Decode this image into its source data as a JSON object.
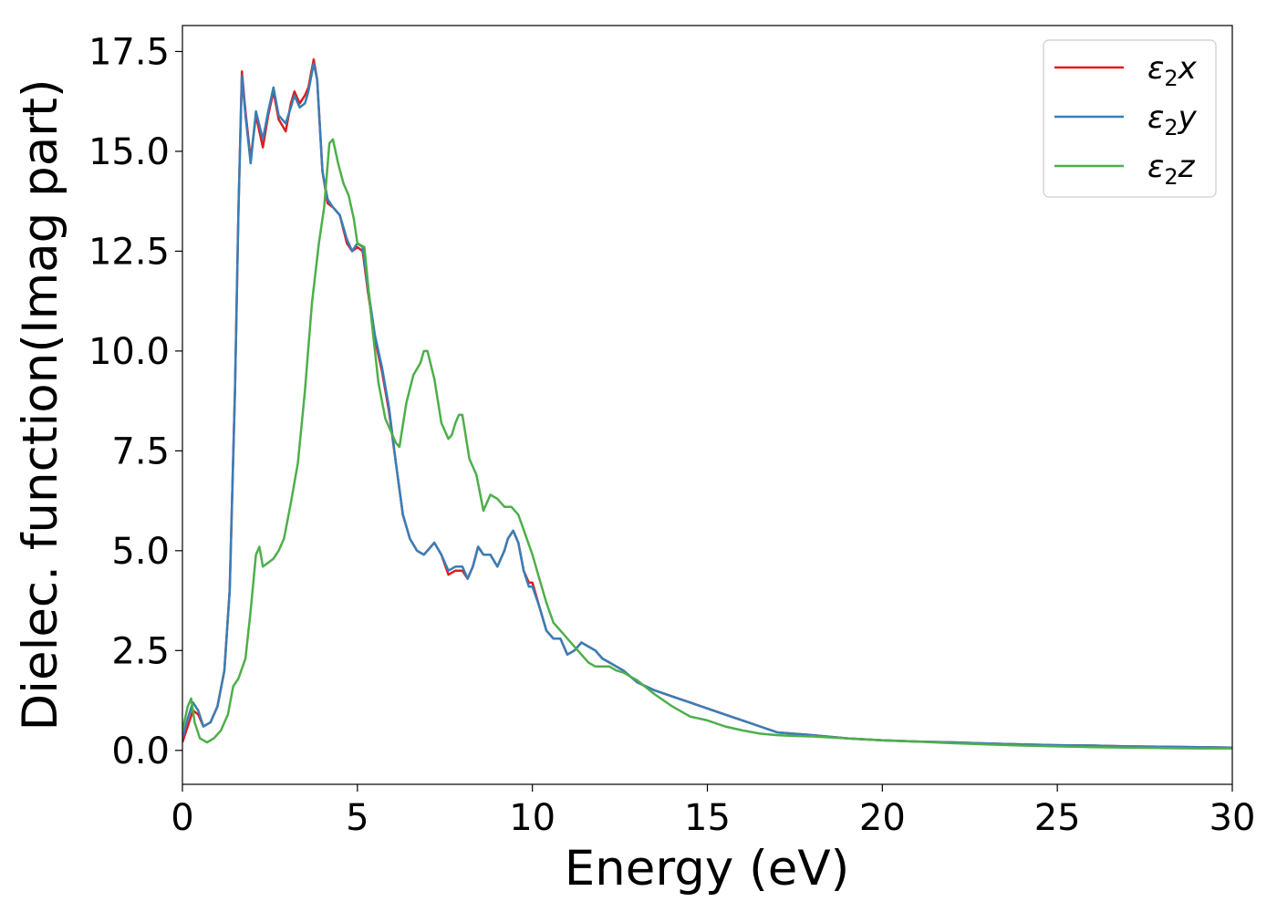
{
  "chart_data": {
    "type": "line",
    "xlabel": "Energy (eV)",
    "ylabel": "Dielec. function(Imag part)",
    "xlim": [
      0,
      30
    ],
    "ylim": [
      -0.85,
      18.15
    ],
    "xticks": [
      "0",
      "5",
      "10",
      "15",
      "20",
      "25",
      "30"
    ],
    "yticks": [
      "0.0",
      "2.5",
      "5.0",
      "7.5",
      "10.0",
      "12.5",
      "15.0",
      "17.5"
    ],
    "grid": false,
    "legend_position": "top-right",
    "series": [
      {
        "name": "ε₂x",
        "legend_base": "ε",
        "legend_sub": "2",
        "legend_suffix": "x",
        "color": "#e41a1c",
        "x": [
          0,
          0.15,
          0.3,
          0.45,
          0.6,
          0.8,
          1.0,
          1.2,
          1.35,
          1.5,
          1.6,
          1.7,
          1.8,
          1.95,
          2.1,
          2.3,
          2.45,
          2.6,
          2.75,
          2.95,
          3.1,
          3.2,
          3.35,
          3.5,
          3.6,
          3.75,
          3.85,
          4.0,
          4.15,
          4.3,
          4.5,
          4.7,
          4.85,
          5.0,
          5.15,
          5.3,
          5.5,
          5.7,
          5.9,
          6.1,
          6.3,
          6.5,
          6.7,
          6.9,
          7.0,
          7.2,
          7.4,
          7.6,
          7.8,
          8.0,
          8.15,
          8.3,
          8.45,
          8.6,
          8.8,
          9.0,
          9.2,
          9.3,
          9.45,
          9.6,
          9.75,
          9.9,
          10.0,
          10.2,
          10.4,
          10.6,
          10.8,
          11.0,
          11.2,
          11.4,
          11.6,
          11.8,
          12.0,
          12.2,
          12.4,
          12.6,
          12.8,
          13.0,
          13.5,
          14.0,
          14.5,
          15.0,
          15.5,
          16.0,
          16.5,
          17.0,
          18.0,
          19.0,
          20.0,
          21.0,
          22.0,
          23.0,
          24.0,
          25.0,
          26.0,
          27.0,
          28.0,
          29.0,
          30.0
        ],
        "values": [
          0.2,
          0.6,
          1.0,
          0.9,
          0.6,
          0.7,
          1.1,
          2.0,
          4.0,
          9.0,
          13.5,
          17.0,
          16.0,
          14.8,
          15.9,
          15.1,
          15.9,
          16.5,
          15.8,
          15.5,
          16.2,
          16.5,
          16.2,
          16.4,
          16.6,
          17.3,
          16.8,
          14.5,
          13.7,
          13.6,
          13.4,
          12.7,
          12.5,
          12.6,
          12.5,
          11.5,
          10.3,
          9.5,
          8.5,
          7.2,
          5.9,
          5.3,
          5.0,
          4.9,
          5.0,
          5.2,
          4.9,
          4.4,
          4.5,
          4.5,
          4.3,
          4.6,
          5.1,
          4.9,
          4.9,
          4.6,
          5.0,
          5.3,
          5.5,
          5.2,
          4.5,
          4.2,
          4.2,
          3.6,
          3.0,
          2.8,
          2.8,
          2.4,
          2.5,
          2.7,
          2.6,
          2.5,
          2.3,
          2.2,
          2.1,
          2.0,
          1.85,
          1.7,
          1.5,
          1.35,
          1.2,
          1.05,
          0.9,
          0.75,
          0.6,
          0.45,
          0.38,
          0.3,
          0.25,
          0.22,
          0.2,
          0.17,
          0.15,
          0.13,
          0.12,
          0.1,
          0.09,
          0.08,
          0.07
        ]
      },
      {
        "name": "ε₂y",
        "legend_base": "ε",
        "legend_sub": "2",
        "legend_suffix": "y",
        "color": "#377eb8",
        "x": [
          0,
          0.15,
          0.3,
          0.45,
          0.6,
          0.8,
          1.0,
          1.2,
          1.35,
          1.5,
          1.6,
          1.7,
          1.8,
          1.95,
          2.1,
          2.3,
          2.45,
          2.6,
          2.75,
          2.95,
          3.1,
          3.2,
          3.35,
          3.5,
          3.6,
          3.75,
          3.85,
          4.0,
          4.15,
          4.3,
          4.5,
          4.7,
          4.85,
          5.0,
          5.15,
          5.3,
          5.5,
          5.7,
          5.9,
          6.1,
          6.3,
          6.5,
          6.7,
          6.9,
          7.0,
          7.2,
          7.4,
          7.6,
          7.8,
          8.0,
          8.15,
          8.3,
          8.45,
          8.6,
          8.8,
          9.0,
          9.2,
          9.3,
          9.45,
          9.6,
          9.75,
          9.9,
          10.0,
          10.2,
          10.4,
          10.6,
          10.8,
          11.0,
          11.2,
          11.4,
          11.6,
          11.8,
          12.0,
          12.2,
          12.4,
          12.6,
          12.8,
          13.0,
          13.5,
          14.0,
          14.5,
          15.0,
          15.5,
          16.0,
          16.5,
          17.0,
          18.0,
          19.0,
          20.0,
          21.0,
          22.0,
          23.0,
          24.0,
          25.0,
          26.0,
          27.0,
          28.0,
          29.0,
          30.0
        ],
        "values": [
          0.3,
          0.8,
          1.2,
          1.0,
          0.6,
          0.7,
          1.1,
          2.0,
          4.0,
          9.0,
          13.5,
          16.9,
          15.9,
          14.7,
          16.0,
          15.3,
          16.0,
          16.6,
          15.9,
          15.7,
          16.1,
          16.4,
          16.1,
          16.2,
          16.5,
          17.2,
          16.8,
          14.5,
          13.8,
          13.6,
          13.4,
          12.8,
          12.5,
          12.7,
          12.6,
          11.6,
          10.4,
          9.6,
          8.6,
          7.2,
          5.9,
          5.3,
          5.0,
          4.9,
          5.0,
          5.2,
          4.9,
          4.5,
          4.6,
          4.6,
          4.3,
          4.6,
          5.1,
          4.9,
          4.9,
          4.6,
          5.0,
          5.3,
          5.5,
          5.2,
          4.5,
          4.1,
          4.1,
          3.6,
          3.0,
          2.8,
          2.8,
          2.4,
          2.5,
          2.7,
          2.6,
          2.5,
          2.3,
          2.2,
          2.1,
          2.0,
          1.85,
          1.7,
          1.5,
          1.35,
          1.2,
          1.05,
          0.9,
          0.75,
          0.6,
          0.45,
          0.38,
          0.3,
          0.25,
          0.22,
          0.2,
          0.17,
          0.15,
          0.13,
          0.12,
          0.1,
          0.09,
          0.08,
          0.07
        ]
      },
      {
        "name": "ε₂z",
        "legend_base": "ε",
        "legend_sub": "2",
        "legend_suffix": "z",
        "color": "#4daf4a",
        "x": [
          0,
          0.15,
          0.25,
          0.35,
          0.5,
          0.7,
          0.9,
          1.1,
          1.3,
          1.45,
          1.6,
          1.8,
          1.95,
          2.1,
          2.2,
          2.3,
          2.45,
          2.6,
          2.75,
          2.9,
          3.1,
          3.3,
          3.5,
          3.7,
          3.9,
          4.05,
          4.2,
          4.3,
          4.45,
          4.6,
          4.75,
          4.9,
          5.0,
          5.2,
          5.4,
          5.6,
          5.8,
          6.0,
          6.1,
          6.2,
          6.4,
          6.6,
          6.8,
          6.9,
          7.0,
          7.2,
          7.4,
          7.6,
          7.7,
          7.8,
          7.9,
          8.0,
          8.2,
          8.4,
          8.6,
          8.8,
          9.0,
          9.2,
          9.4,
          9.6,
          9.8,
          10.0,
          10.2,
          10.4,
          10.6,
          10.8,
          11.0,
          11.2,
          11.4,
          11.6,
          11.8,
          12.0,
          12.2,
          12.4,
          12.6,
          12.8,
          13.0,
          13.5,
          14.0,
          14.5,
          15.0,
          15.5,
          16.0,
          16.5,
          17.0,
          17.5,
          18.0,
          19.0,
          20.0,
          21.0,
          22.0,
          23.0,
          24.0,
          25.0,
          26.0,
          27.0,
          28.0,
          29.0,
          30.0
        ],
        "values": [
          0.5,
          1.1,
          1.3,
          0.7,
          0.3,
          0.2,
          0.3,
          0.5,
          0.9,
          1.6,
          1.8,
          2.3,
          3.5,
          4.9,
          5.1,
          4.6,
          4.7,
          4.8,
          5.0,
          5.3,
          6.2,
          7.2,
          9.0,
          11.2,
          12.7,
          13.6,
          15.2,
          15.3,
          14.7,
          14.2,
          13.9,
          13.3,
          12.7,
          12.6,
          10.8,
          9.2,
          8.3,
          7.9,
          7.7,
          7.6,
          8.7,
          9.4,
          9.7,
          10.0,
          10.0,
          9.3,
          8.2,
          7.8,
          7.9,
          8.2,
          8.4,
          8.4,
          7.3,
          6.9,
          6.0,
          6.4,
          6.3,
          6.1,
          6.1,
          5.9,
          5.4,
          4.9,
          4.3,
          3.7,
          3.2,
          3.0,
          2.8,
          2.6,
          2.4,
          2.2,
          2.1,
          2.1,
          2.1,
          2.0,
          1.95,
          1.85,
          1.75,
          1.4,
          1.1,
          0.85,
          0.75,
          0.6,
          0.5,
          0.42,
          0.38,
          0.36,
          0.35,
          0.3,
          0.25,
          0.22,
          0.18,
          0.15,
          0.12,
          0.1,
          0.08,
          0.07,
          0.06,
          0.05,
          0.05
        ]
      }
    ]
  }
}
